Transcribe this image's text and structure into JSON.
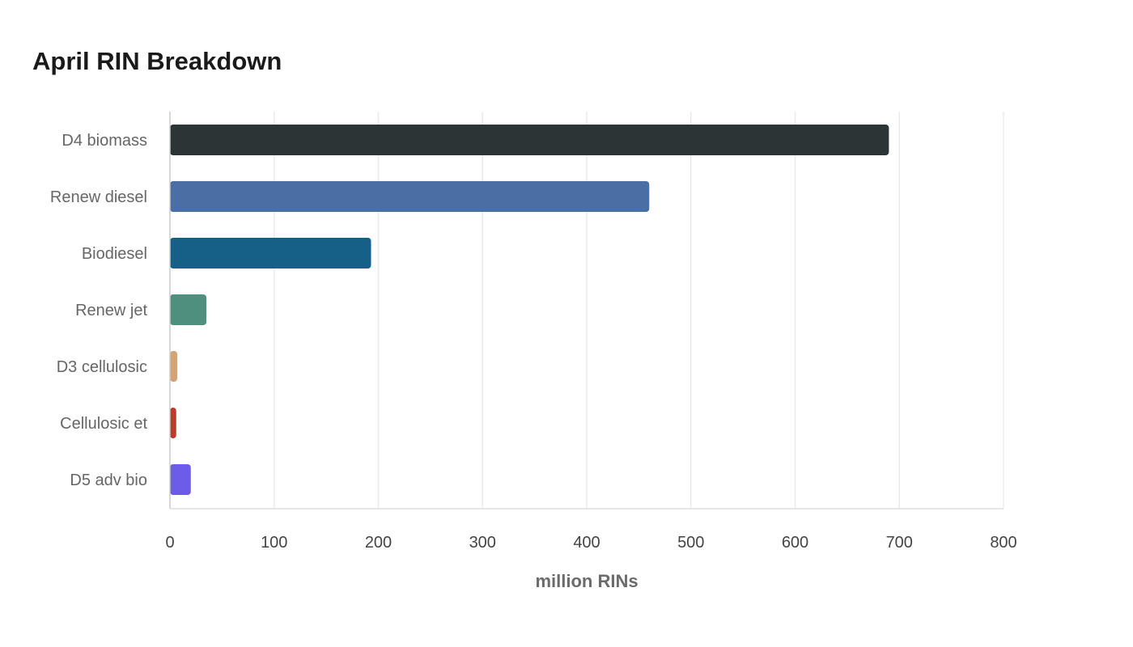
{
  "chart_data": {
    "type": "bar",
    "orientation": "horizontal",
    "title": "April RIN Breakdown",
    "xlabel": "million RINs",
    "ylabel": "",
    "categories": [
      "D4 biomass",
      "Renew diesel",
      "Biodiesel",
      "Renew jet",
      "D3 cellulosic",
      "Cellulosic et",
      "D5 adv bio"
    ],
    "values": [
      690,
      460,
      193,
      35,
      7,
      6,
      20
    ],
    "colors": [
      "#2d3436",
      "#4a6fa5",
      "#166088",
      "#4f8f7d",
      "#d4a373",
      "#c0392b",
      "#6c5ce7"
    ],
    "xlim": [
      0,
      800
    ],
    "xticks": [
      "0",
      "100",
      "200",
      "300",
      "400",
      "500",
      "600",
      "700",
      "800"
    ],
    "grid": true,
    "legend": "none"
  }
}
